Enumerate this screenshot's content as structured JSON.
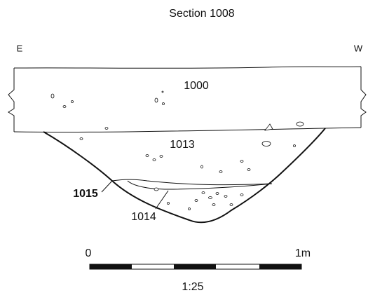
{
  "header": {
    "title": "Section 1008",
    "left_label": "E",
    "right_label": "W"
  },
  "contexts": [
    {
      "label": "1000"
    },
    {
      "label": "1013"
    },
    {
      "label": "1015"
    },
    {
      "label": "1014"
    }
  ],
  "scale_bar": {
    "start_label": "0",
    "end_label": "1m",
    "ratio": "1:25"
  }
}
